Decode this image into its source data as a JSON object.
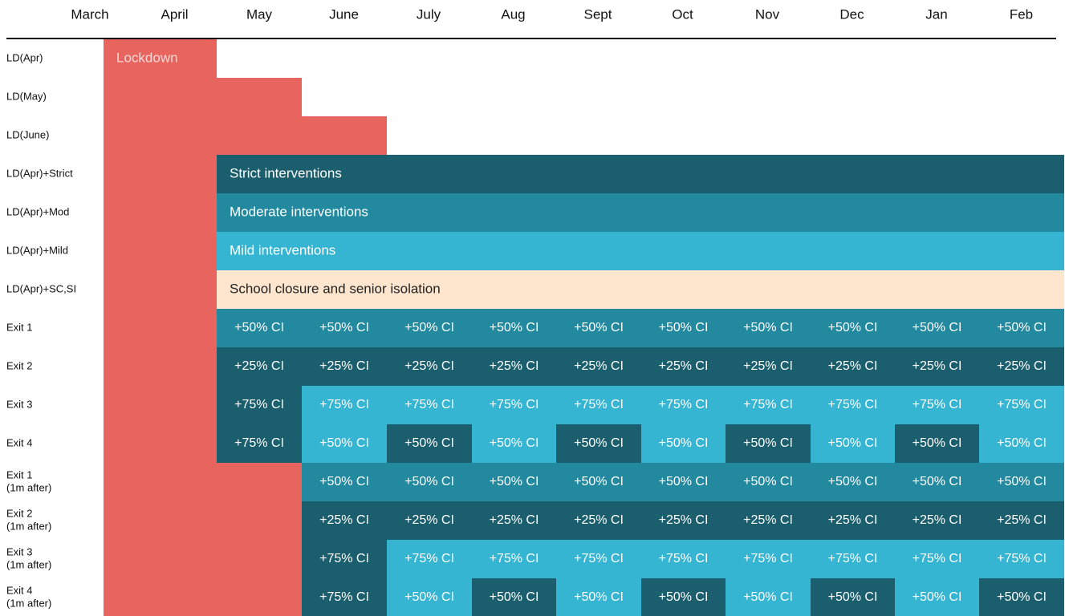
{
  "months": [
    "March",
    "April",
    "May",
    "June",
    "July",
    "Aug",
    "Sept",
    "Oct",
    "Nov",
    "Dec",
    "Jan",
    "Feb"
  ],
  "colors": {
    "lockdown": "#e8645f",
    "dark": "#1b5e6d",
    "mid": "#22899f",
    "light": "#36b5d3",
    "school": "#fde5ce"
  },
  "rows": [
    {
      "label": "LD(Apr)",
      "cells": [
        {
          "col": 1,
          "fill": "lockdown",
          "text": "Lockdown"
        }
      ]
    },
    {
      "label": "LD(May)",
      "cells": [
        {
          "col": 1,
          "span": 2,
          "fill": "lockdown"
        }
      ]
    },
    {
      "label": "LD(June)",
      "cells": [
        {
          "col": 1,
          "span": 3,
          "fill": "lockdown"
        }
      ]
    },
    {
      "label": "LD(Apr)+Strict",
      "cells": [
        {
          "col": 1,
          "fill": "lockdown"
        },
        {
          "col": 2,
          "span": 10,
          "fill": "dark",
          "text": "Strict interventions"
        }
      ]
    },
    {
      "label": "LD(Apr)+Mod",
      "cells": [
        {
          "col": 1,
          "fill": "lockdown"
        },
        {
          "col": 2,
          "span": 10,
          "fill": "mid",
          "text": "Moderate interventions"
        }
      ]
    },
    {
      "label": "LD(Apr)+Mild",
      "cells": [
        {
          "col": 1,
          "fill": "lockdown"
        },
        {
          "col": 2,
          "span": 10,
          "fill": "light",
          "text": "Mild interventions"
        }
      ]
    },
    {
      "label": "LD(Apr)+SC,SI",
      "cells": [
        {
          "col": 1,
          "fill": "lockdown"
        },
        {
          "col": 2,
          "span": 10,
          "fill": "school",
          "text": "School closure and senior isolation"
        }
      ]
    },
    {
      "label": "Exit 1",
      "cells": [
        {
          "col": 1,
          "fill": "lockdown"
        },
        {
          "col": 2,
          "fill": "mid",
          "text": "+50% CI"
        },
        {
          "col": 3,
          "fill": "mid",
          "text": "+50% CI"
        },
        {
          "col": 4,
          "fill": "mid",
          "text": "+50% CI"
        },
        {
          "col": 5,
          "fill": "mid",
          "text": "+50% CI"
        },
        {
          "col": 6,
          "fill": "mid",
          "text": "+50% CI"
        },
        {
          "col": 7,
          "fill": "mid",
          "text": "+50% CI"
        },
        {
          "col": 8,
          "fill": "mid",
          "text": "+50% CI"
        },
        {
          "col": 9,
          "fill": "mid",
          "text": "+50% CI"
        },
        {
          "col": 10,
          "fill": "mid",
          "text": "+50% CI"
        },
        {
          "col": 11,
          "fill": "mid",
          "text": "+50% CI"
        }
      ]
    },
    {
      "label": "Exit 2",
      "cells": [
        {
          "col": 1,
          "fill": "lockdown"
        },
        {
          "col": 2,
          "fill": "dark",
          "text": "+25% CI"
        },
        {
          "col": 3,
          "fill": "dark",
          "text": "+25% CI"
        },
        {
          "col": 4,
          "fill": "dark",
          "text": "+25% CI"
        },
        {
          "col": 5,
          "fill": "dark",
          "text": "+25% CI"
        },
        {
          "col": 6,
          "fill": "dark",
          "text": "+25% CI"
        },
        {
          "col": 7,
          "fill": "dark",
          "text": "+25% CI"
        },
        {
          "col": 8,
          "fill": "dark",
          "text": "+25% CI"
        },
        {
          "col": 9,
          "fill": "dark",
          "text": "+25% CI"
        },
        {
          "col": 10,
          "fill": "dark",
          "text": "+25% CI"
        },
        {
          "col": 11,
          "fill": "dark",
          "text": "+25% CI"
        }
      ]
    },
    {
      "label": "Exit 3",
      "cells": [
        {
          "col": 1,
          "fill": "lockdown"
        },
        {
          "col": 2,
          "fill": "dark",
          "text": "+75% CI"
        },
        {
          "col": 3,
          "fill": "light",
          "text": "+75% CI"
        },
        {
          "col": 4,
          "fill": "light",
          "text": "+75% CI"
        },
        {
          "col": 5,
          "fill": "light",
          "text": "+75% CI"
        },
        {
          "col": 6,
          "fill": "light",
          "text": "+75% CI"
        },
        {
          "col": 7,
          "fill": "light",
          "text": "+75% CI"
        },
        {
          "col": 8,
          "fill": "light",
          "text": "+75% CI"
        },
        {
          "col": 9,
          "fill": "light",
          "text": "+75% CI"
        },
        {
          "col": 10,
          "fill": "light",
          "text": "+75% CI"
        },
        {
          "col": 11,
          "fill": "light",
          "text": "+75% CI"
        }
      ]
    },
    {
      "label": "Exit 4",
      "cells": [
        {
          "col": 1,
          "fill": "lockdown"
        },
        {
          "col": 2,
          "fill": "dark",
          "text": "+75% CI"
        },
        {
          "col": 3,
          "fill": "light",
          "text": "+50% CI"
        },
        {
          "col": 4,
          "fill": "dark",
          "text": "+50% CI"
        },
        {
          "col": 5,
          "fill": "light",
          "text": "+50% CI"
        },
        {
          "col": 6,
          "fill": "dark",
          "text": "+50% CI"
        },
        {
          "col": 7,
          "fill": "light",
          "text": "+50% CI"
        },
        {
          "col": 8,
          "fill": "dark",
          "text": "+50% CI"
        },
        {
          "col": 9,
          "fill": "light",
          "text": "+50% CI"
        },
        {
          "col": 10,
          "fill": "dark",
          "text": "+50% CI"
        },
        {
          "col": 11,
          "fill": "light",
          "text": "+50% CI"
        }
      ]
    },
    {
      "label": "Exit 1",
      "sublabel": "(1m after)",
      "cells": [
        {
          "col": 1,
          "span": 2,
          "fill": "lockdown"
        },
        {
          "col": 3,
          "fill": "mid",
          "text": "+50% CI"
        },
        {
          "col": 4,
          "fill": "mid",
          "text": "+50% CI"
        },
        {
          "col": 5,
          "fill": "mid",
          "text": "+50% CI"
        },
        {
          "col": 6,
          "fill": "mid",
          "text": "+50% CI"
        },
        {
          "col": 7,
          "fill": "mid",
          "text": "+50% CI"
        },
        {
          "col": 8,
          "fill": "mid",
          "text": "+50% CI"
        },
        {
          "col": 9,
          "fill": "mid",
          "text": "+50% CI"
        },
        {
          "col": 10,
          "fill": "mid",
          "text": "+50% CI"
        },
        {
          "col": 11,
          "fill": "mid",
          "text": "+50% CI"
        }
      ]
    },
    {
      "label": "Exit 2",
      "sublabel": "(1m after)",
      "cells": [
        {
          "col": 1,
          "span": 2,
          "fill": "lockdown"
        },
        {
          "col": 3,
          "fill": "dark",
          "text": "+25% CI"
        },
        {
          "col": 4,
          "fill": "dark",
          "text": "+25% CI"
        },
        {
          "col": 5,
          "fill": "dark",
          "text": "+25% CI"
        },
        {
          "col": 6,
          "fill": "dark",
          "text": "+25% CI"
        },
        {
          "col": 7,
          "fill": "dark",
          "text": "+25% CI"
        },
        {
          "col": 8,
          "fill": "dark",
          "text": "+25% CI"
        },
        {
          "col": 9,
          "fill": "dark",
          "text": "+25% CI"
        },
        {
          "col": 10,
          "fill": "dark",
          "text": "+25% CI"
        },
        {
          "col": 11,
          "fill": "dark",
          "text": "+25% CI"
        }
      ]
    },
    {
      "label": "Exit 3",
      "sublabel": "(1m after)",
      "cells": [
        {
          "col": 1,
          "span": 2,
          "fill": "lockdown"
        },
        {
          "col": 3,
          "fill": "dark",
          "text": "+75% CI"
        },
        {
          "col": 4,
          "fill": "light",
          "text": "+75% CI"
        },
        {
          "col": 5,
          "fill": "light",
          "text": "+75% CI"
        },
        {
          "col": 6,
          "fill": "light",
          "text": "+75% CI"
        },
        {
          "col": 7,
          "fill": "light",
          "text": "+75% CI"
        },
        {
          "col": 8,
          "fill": "light",
          "text": "+75% CI"
        },
        {
          "col": 9,
          "fill": "light",
          "text": "+75% CI"
        },
        {
          "col": 10,
          "fill": "light",
          "text": "+75% CI"
        },
        {
          "col": 11,
          "fill": "light",
          "text": "+75% CI"
        }
      ]
    },
    {
      "label": "Exit 4",
      "sublabel": "(1m after)",
      "cells": [
        {
          "col": 1,
          "span": 2,
          "fill": "lockdown"
        },
        {
          "col": 3,
          "fill": "dark",
          "text": "+75% CI"
        },
        {
          "col": 4,
          "fill": "light",
          "text": "+50% CI"
        },
        {
          "col": 5,
          "fill": "dark",
          "text": "+50% CI"
        },
        {
          "col": 6,
          "fill": "light",
          "text": "+50% CI"
        },
        {
          "col": 7,
          "fill": "dark",
          "text": "+50% CI"
        },
        {
          "col": 8,
          "fill": "light",
          "text": "+50% CI"
        },
        {
          "col": 9,
          "fill": "dark",
          "text": "+50% CI"
        },
        {
          "col": 10,
          "fill": "light",
          "text": "+50% CI"
        },
        {
          "col": 11,
          "fill": "dark",
          "text": "+50% CI"
        }
      ]
    }
  ]
}
